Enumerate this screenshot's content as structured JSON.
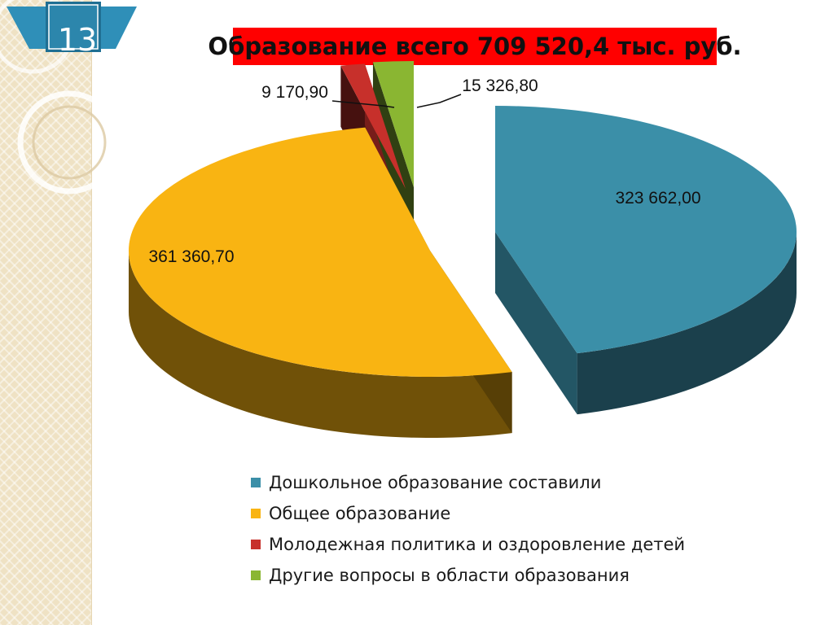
{
  "slide": {
    "number": "13"
  },
  "title": "Образование всего 709 520,4 тыс. руб.",
  "chart_data": {
    "type": "pie",
    "title": "Образование всего 709 520,4 тыс. руб.",
    "categories": [
      "Дошкольное образование составили",
      "Общее образование",
      "Молодежная политика и оздоровление детей",
      "Другие вопросы в области образования"
    ],
    "values": [
      323662.0,
      361360.7,
      9170.9,
      15326.8
    ],
    "labels": [
      "323 662,00",
      "361 360,70",
      "9 170,90",
      "15 326,80"
    ],
    "colors": [
      "#3b8fa8",
      "#f9b412",
      "#c7302b",
      "#8ab632"
    ],
    "legend_position": "bottom"
  }
}
